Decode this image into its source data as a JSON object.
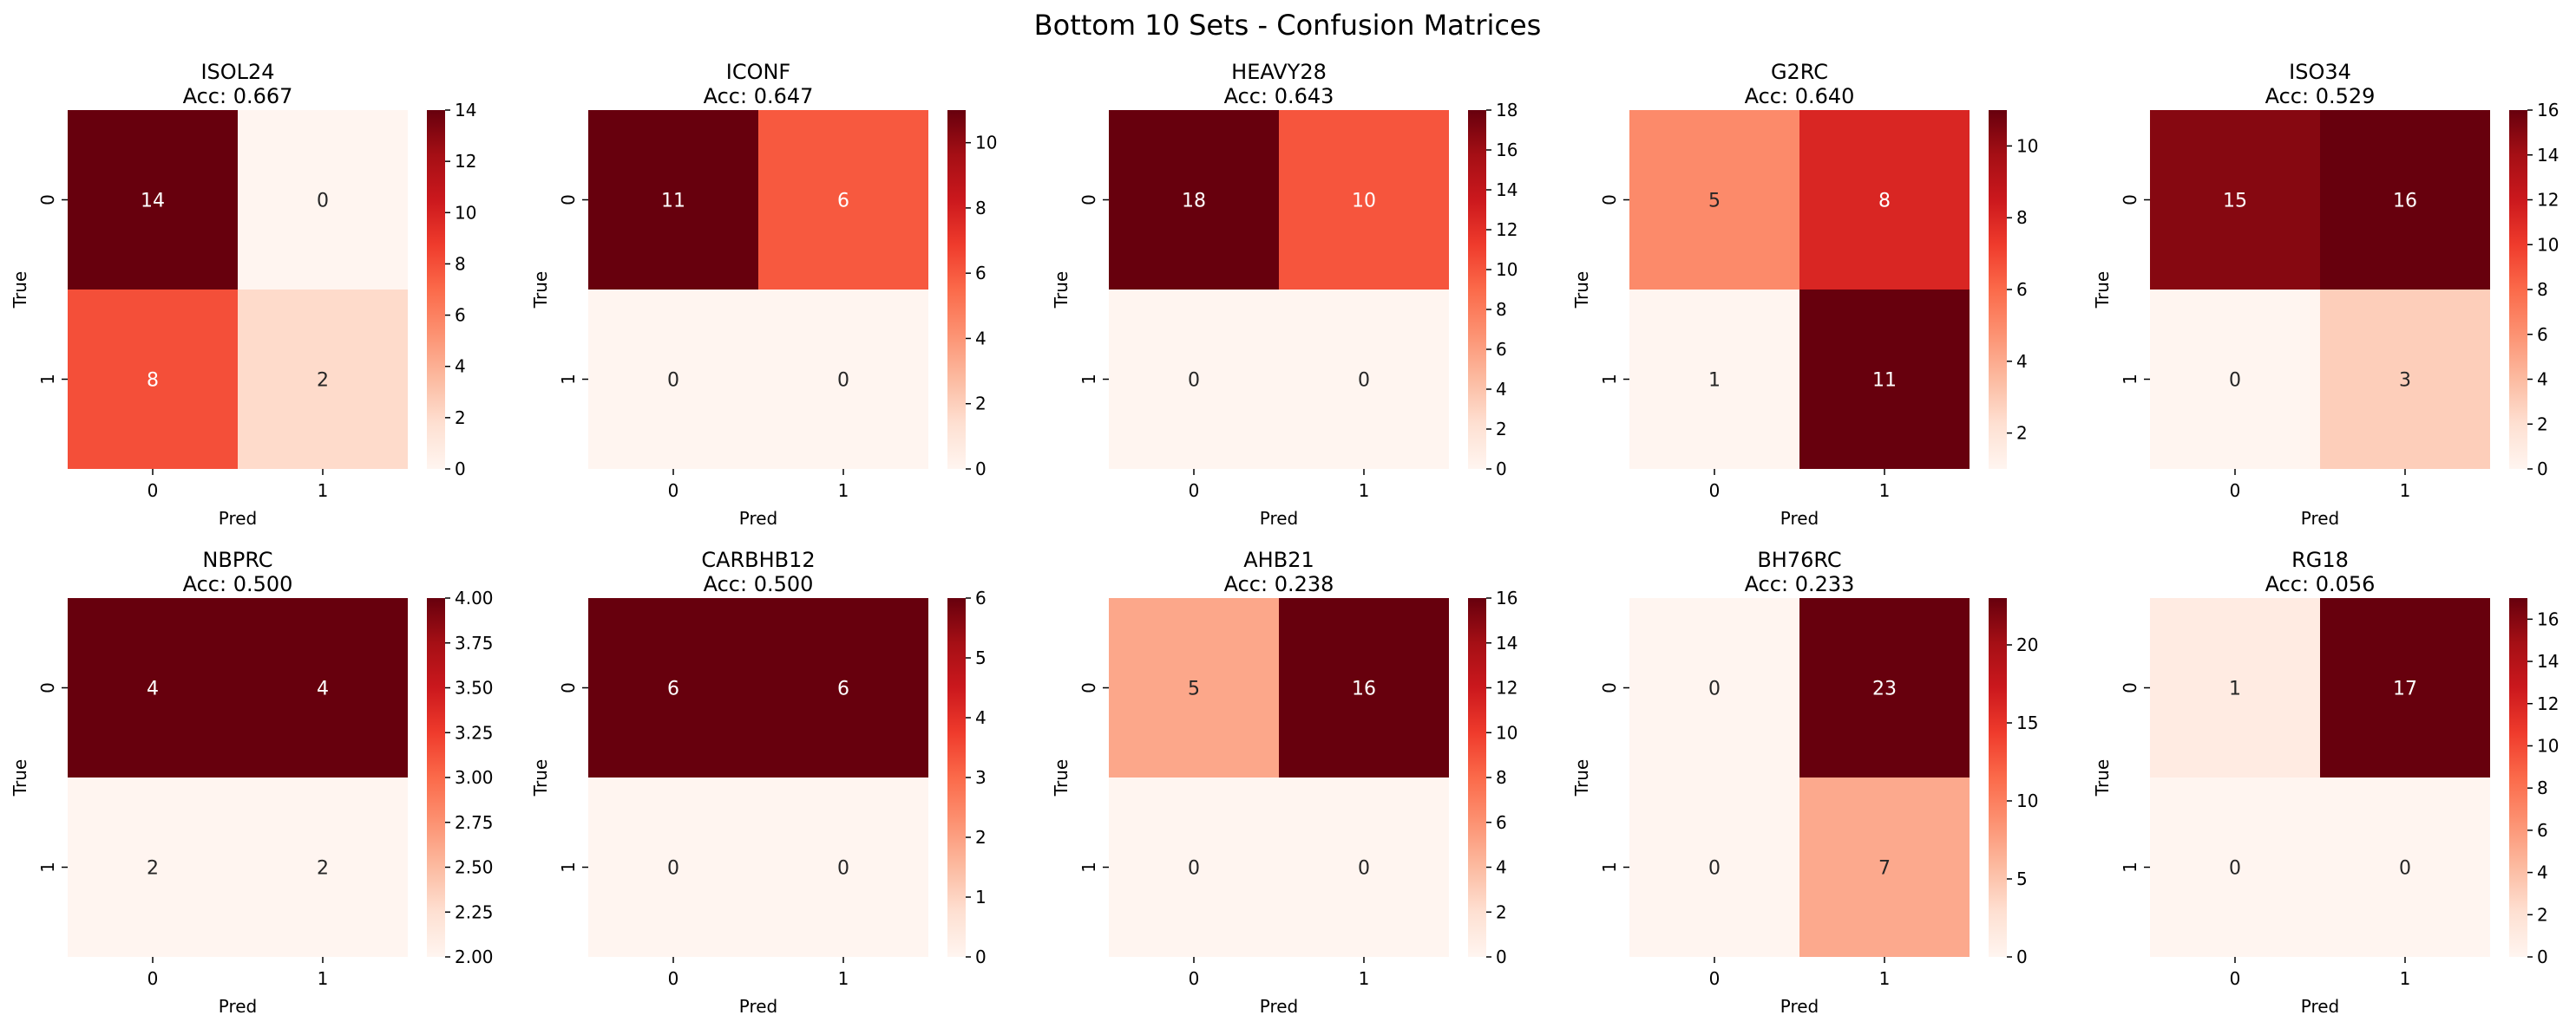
{
  "figure": {
    "title": "Bottom 10 Sets - Confusion Matrices"
  },
  "chart_data": [
    {
      "type": "heatmap",
      "title": "ISOL24",
      "subtitle": "Acc: 0.667",
      "xlabel": "Pred",
      "ylabel": "True",
      "x_ticks": [
        "0",
        "1"
      ],
      "y_ticks": [
        "0",
        "1"
      ],
      "matrix": [
        [
          14,
          0
        ],
        [
          8,
          2
        ]
      ],
      "colorbar": {
        "min": 0,
        "max": 14,
        "ticks": [
          "0",
          "2",
          "4",
          "6",
          "8",
          "10",
          "12",
          "14"
        ]
      },
      "colormap": "Reds"
    },
    {
      "type": "heatmap",
      "title": "ICONF",
      "subtitle": "Acc: 0.647",
      "xlabel": "Pred",
      "ylabel": "True",
      "x_ticks": [
        "0",
        "1"
      ],
      "y_ticks": [
        "0",
        "1"
      ],
      "matrix": [
        [
          11,
          6
        ],
        [
          0,
          0
        ]
      ],
      "colorbar": {
        "min": 0,
        "max": 11,
        "ticks": [
          "0",
          "2",
          "4",
          "6",
          "8",
          "10"
        ]
      },
      "colormap": "Reds"
    },
    {
      "type": "heatmap",
      "title": "HEAVY28",
      "subtitle": "Acc: 0.643",
      "xlabel": "Pred",
      "ylabel": "True",
      "x_ticks": [
        "0",
        "1"
      ],
      "y_ticks": [
        "0",
        "1"
      ],
      "matrix": [
        [
          18,
          10
        ],
        [
          0,
          0
        ]
      ],
      "colorbar": {
        "min": 0,
        "max": 18,
        "ticks": [
          "0",
          "2",
          "4",
          "6",
          "8",
          "10",
          "12",
          "14",
          "16",
          "18"
        ]
      },
      "colormap": "Reds"
    },
    {
      "type": "heatmap",
      "title": "G2RC",
      "subtitle": "Acc: 0.640",
      "xlabel": "Pred",
      "ylabel": "True",
      "x_ticks": [
        "0",
        "1"
      ],
      "y_ticks": [
        "0",
        "1"
      ],
      "matrix": [
        [
          5,
          8
        ],
        [
          1,
          11
        ]
      ],
      "colorbar": {
        "min": 1,
        "max": 11,
        "ticks": [
          "2",
          "4",
          "6",
          "8",
          "10"
        ]
      },
      "colormap": "Reds"
    },
    {
      "type": "heatmap",
      "title": "ISO34",
      "subtitle": "Acc: 0.529",
      "xlabel": "Pred",
      "ylabel": "True",
      "x_ticks": [
        "0",
        "1"
      ],
      "y_ticks": [
        "0",
        "1"
      ],
      "matrix": [
        [
          15,
          16
        ],
        [
          0,
          3
        ]
      ],
      "colorbar": {
        "min": 0,
        "max": 16,
        "ticks": [
          "0",
          "2",
          "4",
          "6",
          "8",
          "10",
          "12",
          "14",
          "16"
        ]
      },
      "colormap": "Reds"
    },
    {
      "type": "heatmap",
      "title": "NBPRC",
      "subtitle": "Acc: 0.500",
      "xlabel": "Pred",
      "ylabel": "True",
      "x_ticks": [
        "0",
        "1"
      ],
      "y_ticks": [
        "0",
        "1"
      ],
      "matrix": [
        [
          4,
          4
        ],
        [
          2,
          2
        ]
      ],
      "colorbar": {
        "min": 2,
        "max": 4,
        "ticks": [
          "2.00",
          "2.25",
          "2.50",
          "2.75",
          "3.00",
          "3.25",
          "3.50",
          "3.75",
          "4.00"
        ]
      },
      "colormap": "Reds"
    },
    {
      "type": "heatmap",
      "title": "CARBHB12",
      "subtitle": "Acc: 0.500",
      "xlabel": "Pred",
      "ylabel": "True",
      "x_ticks": [
        "0",
        "1"
      ],
      "y_ticks": [
        "0",
        "1"
      ],
      "matrix": [
        [
          6,
          6
        ],
        [
          0,
          0
        ]
      ],
      "colorbar": {
        "min": 0,
        "max": 6,
        "ticks": [
          "0",
          "1",
          "2",
          "3",
          "4",
          "5",
          "6"
        ]
      },
      "colormap": "Reds"
    },
    {
      "type": "heatmap",
      "title": "AHB21",
      "subtitle": "Acc: 0.238",
      "xlabel": "Pred",
      "ylabel": "True",
      "x_ticks": [
        "0",
        "1"
      ],
      "y_ticks": [
        "0",
        "1"
      ],
      "matrix": [
        [
          5,
          16
        ],
        [
          0,
          0
        ]
      ],
      "colorbar": {
        "min": 0,
        "max": 16,
        "ticks": [
          "0",
          "2",
          "4",
          "6",
          "8",
          "10",
          "12",
          "14",
          "16"
        ]
      },
      "colormap": "Reds"
    },
    {
      "type": "heatmap",
      "title": "BH76RC",
      "subtitle": "Acc: 0.233",
      "xlabel": "Pred",
      "ylabel": "True",
      "x_ticks": [
        "0",
        "1"
      ],
      "y_ticks": [
        "0",
        "1"
      ],
      "matrix": [
        [
          0,
          23
        ],
        [
          0,
          7
        ]
      ],
      "colorbar": {
        "min": 0,
        "max": 23,
        "ticks": [
          "0",
          "5",
          "10",
          "15",
          "20"
        ]
      },
      "colormap": "Reds"
    },
    {
      "type": "heatmap",
      "title": "RG18",
      "subtitle": "Acc: 0.056",
      "xlabel": "Pred",
      "ylabel": "True",
      "x_ticks": [
        "0",
        "1"
      ],
      "y_ticks": [
        "0",
        "1"
      ],
      "matrix": [
        [
          1,
          17
        ],
        [
          0,
          0
        ]
      ],
      "colorbar": {
        "min": 0,
        "max": 17,
        "ticks": [
          "0",
          "2",
          "4",
          "6",
          "8",
          "10",
          "12",
          "14",
          "16"
        ]
      },
      "colormap": "Reds"
    }
  ]
}
